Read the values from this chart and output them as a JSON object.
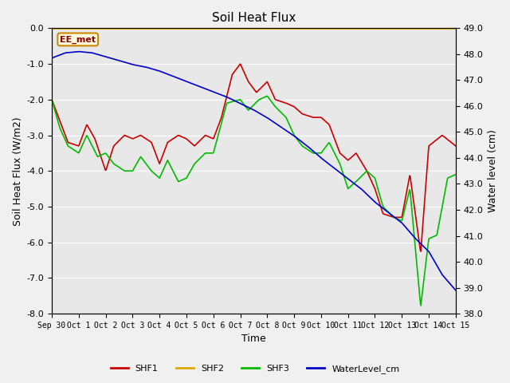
{
  "title": "Soil Heat Flux",
  "xlabel": "Time",
  "ylabel_left": "Soil Heat Flux (W/m2)",
  "ylabel_right": "Water level (cm)",
  "ylim_left": [
    -8.0,
    0.0
  ],
  "ylim_right": [
    38.0,
    49.0
  ],
  "fig_bg_color": "#f0f0f0",
  "plot_bg_color": "#e8e8e8",
  "annotation_label": "EE_met",
  "annotation_box_color": "#ffffe0",
  "annotation_border_color": "#cc8800",
  "shf2_color": "#ddaa00",
  "shf1_color": "#cc0000",
  "shf3_color": "#00bb00",
  "water_color": "#0000cc",
  "x_tick_labels": [
    "Sep 30",
    "Oct 1",
    "Oct 2",
    "Oct 3",
    "Oct 4",
    "Oct 5",
    "Oct 6",
    "Oct 7",
    "Oct 8",
    "Oct 9",
    "Oct 10",
    "Oct 11",
    "Oct 12",
    "Oct 13",
    "Oct 14",
    "Oct 15"
  ],
  "yticks_left": [
    0.0,
    -1.0,
    -2.0,
    -3.0,
    -4.0,
    -5.0,
    -6.0,
    -7.0,
    -8.0
  ],
  "yticks_right": [
    38.0,
    39.0,
    40.0,
    41.0,
    42.0,
    43.0,
    44.0,
    45.0,
    46.0,
    47.0,
    48.0,
    49.0
  ],
  "kx1": [
    0,
    0.3,
    0.6,
    1.0,
    1.3,
    1.6,
    2.0,
    2.3,
    2.7,
    3.0,
    3.3,
    3.7,
    4.0,
    4.3,
    4.7,
    5.0,
    5.3,
    5.7,
    6.0,
    6.3,
    6.7,
    7.0,
    7.3,
    7.6,
    8.0,
    8.3,
    8.7,
    9.0,
    9.3,
    9.7,
    10.0,
    10.3,
    10.7,
    11.0,
    11.3,
    11.7,
    12.0,
    12.3,
    12.7,
    13.0,
    13.3,
    13.7,
    14.0,
    14.5,
    15.0
  ],
  "ky1": [
    -2.0,
    -2.6,
    -3.2,
    -3.3,
    -2.7,
    -3.1,
    -4.0,
    -3.3,
    -3.0,
    -3.1,
    -3.0,
    -3.2,
    -3.8,
    -3.2,
    -3.0,
    -3.1,
    -3.3,
    -3.0,
    -3.1,
    -2.5,
    -1.3,
    -1.0,
    -1.5,
    -1.8,
    -1.5,
    -2.0,
    -2.1,
    -2.2,
    -2.4,
    -2.5,
    -2.5,
    -2.7,
    -3.5,
    -3.7,
    -3.5,
    -4.0,
    -4.5,
    -5.2,
    -5.3,
    -5.3,
    -4.1,
    -6.3,
    -3.3,
    -3.0,
    -3.3
  ],
  "kx3": [
    0,
    0.3,
    0.6,
    1.0,
    1.3,
    1.7,
    2.0,
    2.3,
    2.7,
    3.0,
    3.3,
    3.7,
    4.0,
    4.3,
    4.7,
    5.0,
    5.3,
    5.7,
    6.0,
    6.5,
    7.0,
    7.3,
    7.7,
    8.0,
    8.3,
    8.7,
    9.0,
    9.3,
    9.7,
    10.0,
    10.3,
    10.7,
    11.0,
    11.3,
    11.7,
    12.0,
    12.3,
    12.7,
    13.0,
    13.3,
    13.7,
    14.0,
    14.3,
    14.7,
    15.0
  ],
  "ky3": [
    -2.0,
    -2.8,
    -3.3,
    -3.5,
    -3.0,
    -3.6,
    -3.5,
    -3.8,
    -4.0,
    -4.0,
    -3.6,
    -4.0,
    -4.2,
    -3.7,
    -4.3,
    -4.2,
    -3.8,
    -3.5,
    -3.5,
    -2.1,
    -2.0,
    -2.3,
    -2.0,
    -1.9,
    -2.2,
    -2.5,
    -3.0,
    -3.3,
    -3.5,
    -3.5,
    -3.2,
    -3.8,
    -4.5,
    -4.3,
    -4.0,
    -4.2,
    -5.0,
    -5.3,
    -5.4,
    -4.5,
    -7.8,
    -5.9,
    -5.8,
    -4.2,
    -4.1
  ],
  "kxw": [
    0,
    0.5,
    1.0,
    1.5,
    2.0,
    2.5,
    3.0,
    3.5,
    4.0,
    4.5,
    5.0,
    5.5,
    6.0,
    6.5,
    7.0,
    7.5,
    8.0,
    8.5,
    9.0,
    9.5,
    10.0,
    10.5,
    11.0,
    11.5,
    12.0,
    12.5,
    13.0,
    13.5,
    14.0,
    14.5,
    15.0
  ],
  "kyw": [
    47.85,
    48.05,
    48.1,
    48.05,
    47.9,
    47.75,
    47.6,
    47.5,
    47.35,
    47.15,
    46.95,
    46.75,
    46.55,
    46.35,
    46.1,
    45.85,
    45.55,
    45.2,
    44.85,
    44.45,
    44.0,
    43.6,
    43.2,
    42.8,
    42.3,
    41.9,
    41.5,
    40.9,
    40.4,
    39.5,
    38.9
  ]
}
